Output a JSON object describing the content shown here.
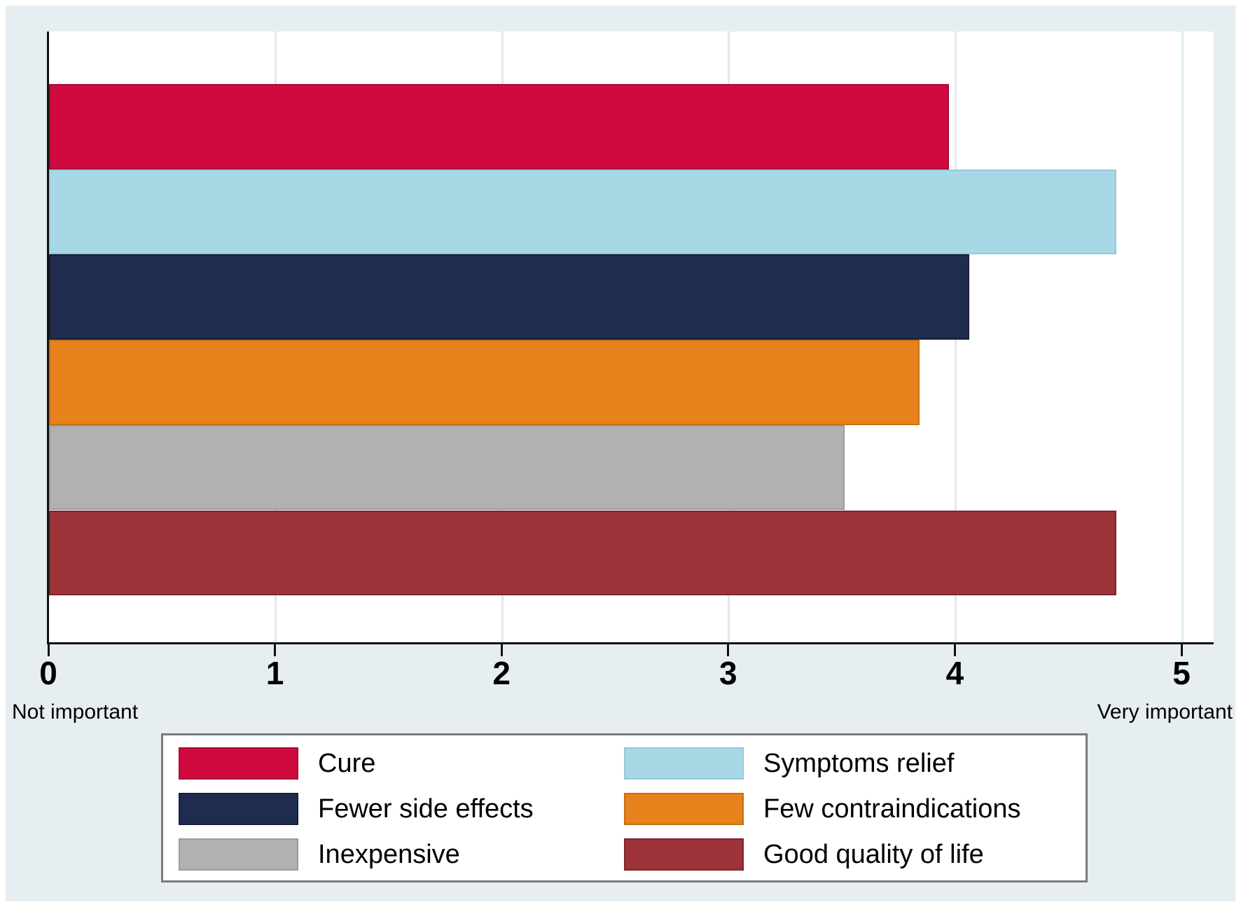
{
  "chart_data": {
    "type": "bar",
    "orientation": "horizontal",
    "title": "",
    "xlabel": "",
    "ylabel": "",
    "categories": [
      "Cure",
      "Symptoms relief",
      "Fewer side effects",
      "Few contraindications",
      "Inexpensive",
      "Good quality of life"
    ],
    "values": [
      3.97,
      4.71,
      4.06,
      3.84,
      3.51,
      4.71
    ],
    "bar_colors": [
      "#d00a3f",
      "#a8d7e6",
      "#1f2c50",
      "#e8821c",
      "#b1b1b1",
      "#9e333a"
    ],
    "bar_border_colors": [
      "#ab0833",
      "#93c9dc",
      "#151f3a",
      "#c66e12",
      "#9b9b9b",
      "#7c262c"
    ],
    "xlim": [
      0,
      5.14
    ],
    "x_ticks": [
      0,
      1,
      2,
      3,
      4,
      5
    ],
    "gridline_values": [
      1,
      2,
      3,
      4,
      5
    ],
    "grid": true,
    "x_caption_left": "Not important",
    "x_caption_right": "Very important",
    "legend_position": "bottom",
    "legend": [
      {
        "label": "Cure",
        "color": "#d00a3f",
        "border": "#ab0833"
      },
      {
        "label": "Symptoms relief",
        "color": "#a8d7e6",
        "border": "#93c9dc"
      },
      {
        "label": "Fewer side effects",
        "color": "#1f2c50",
        "border": "#151f3a"
      },
      {
        "label": "Few contraindications",
        "color": "#e8821c",
        "border": "#c66e12"
      },
      {
        "label": "Inexpensive",
        "color": "#b1b1b1",
        "border": "#9b9b9b"
      },
      {
        "label": "Good quality of life",
        "color": "#9e333a",
        "border": "#7c262c"
      }
    ],
    "theme": {
      "background": "#e6eef2",
      "plot_background": "#ffffff",
      "gridline_color": "#ddeaf1",
      "axis_color": "#111111",
      "legend_border_color": "#7a7a7a"
    }
  }
}
